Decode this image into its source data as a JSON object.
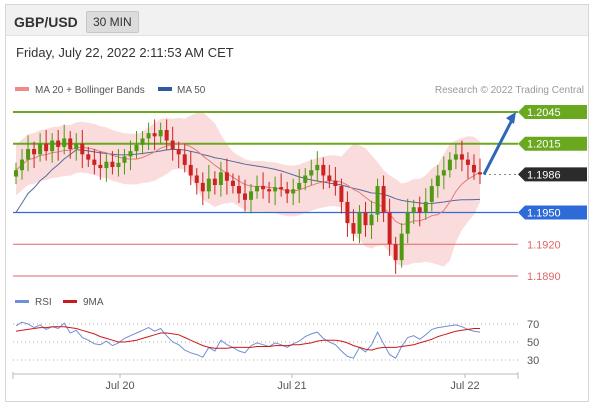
{
  "header": {
    "symbol": "GBP/USD",
    "timeframe": "30 MIN"
  },
  "timestamp": "Friday, July 22, 2022 2:11:53 AM CET",
  "legend": {
    "bollinger": "MA 20 + Bollinger Bands",
    "ma50": "MA 50",
    "rsi": "RSI",
    "rsi_ma": "9MA"
  },
  "copyright": "Research © 2022 Trading Central",
  "colors": {
    "resistance": "#6aa820",
    "support": "#2e6bd8",
    "secondary": "#e06666",
    "candle_up": "#4e9a12",
    "candle_down": "#cc2222",
    "bands": "#f8d0d0",
    "ma50": "#55699a",
    "ma20": "#e07b7b",
    "rsi": "#6f8fd6",
    "rsi_ma": "#cc1a1a",
    "arrow": "#2f66b8"
  },
  "chart_data": {
    "type": "candlestick",
    "instrument": "GBP/USD",
    "x_ticks": [
      "Jul 20",
      "Jul 21",
      "Jul 22"
    ],
    "price_axis_labels": [
      "1.2045",
      "1.2015",
      "1.1986",
      "1.1950",
      "1.1920",
      "1.1890"
    ],
    "levels": [
      {
        "value": 1.2045,
        "label": "1.2045",
        "kind": "resistance"
      },
      {
        "value": 1.2015,
        "label": "1.2015",
        "kind": "resistance"
      },
      {
        "value": 1.1986,
        "label": "1.1986",
        "kind": "last-price"
      },
      {
        "value": 1.195,
        "label": "1.1950",
        "kind": "support"
      },
      {
        "value": 1.192,
        "label": "1.1920",
        "kind": "support"
      },
      {
        "value": 1.189,
        "label": "1.1890",
        "kind": "support"
      }
    ],
    "last_price": 1.1986,
    "target_arrow": {
      "from": 1.1986,
      "to": 1.2045
    },
    "close_series": [
      1.199,
      1.2,
      1.201,
      1.2005,
      1.2015,
      1.2008,
      1.2018,
      1.2012,
      1.202,
      1.201,
      1.2015,
      1.2005,
      1.2,
      1.1995,
      1.1992,
      1.1998,
      1.1993,
      1.1997,
      1.2003,
      1.2008,
      1.2014,
      1.202,
      1.2025,
      1.2022,
      1.2028,
      1.2018,
      1.201,
      1.2005,
      1.1995,
      1.1985,
      1.1978,
      1.197,
      1.1982,
      1.1976,
      1.1988,
      1.198,
      1.1975,
      1.1968,
      1.1962,
      1.197,
      1.1975,
      1.1972,
      1.197,
      1.1974,
      1.1972,
      1.1968,
      1.1972,
      1.1978,
      1.1985,
      1.199,
      1.1995,
      1.1985,
      1.198,
      1.1975,
      1.196,
      1.194,
      1.193,
      1.195,
      1.1938,
      1.1948,
      1.1975,
      1.195,
      1.192,
      1.1905,
      1.193,
      1.195,
      1.1955,
      1.195,
      1.196,
      1.1975,
      1.1985,
      1.199,
      1.2,
      1.2005,
      1.2,
      1.1995,
      1.1988,
      1.1986
    ],
    "rsi": {
      "levels": [
        70,
        50,
        30
      ],
      "values": [
        68,
        72,
        70,
        66,
        69,
        64,
        67,
        65,
        71,
        60,
        63,
        55,
        52,
        48,
        47,
        51,
        46,
        49,
        54,
        57,
        60,
        63,
        66,
        62,
        65,
        57,
        50,
        47,
        41,
        38,
        36,
        33,
        44,
        40,
        52,
        47,
        44,
        40,
        38,
        46,
        49,
        47,
        45,
        49,
        47,
        44,
        48,
        51,
        56,
        59,
        61,
        54,
        50,
        47,
        40,
        34,
        32,
        44,
        39,
        47,
        61,
        48,
        36,
        32,
        45,
        55,
        57,
        53,
        58,
        64,
        66,
        67,
        68,
        69,
        67,
        64,
        62,
        61
      ],
      "ma_values": [
        62,
        63,
        64,
        65,
        66,
        66,
        67,
        67,
        67,
        66,
        65,
        63,
        61,
        59,
        56,
        54,
        52,
        50,
        50,
        51,
        52,
        54,
        56,
        58,
        60,
        60,
        59,
        58,
        55,
        52,
        49,
        46,
        44,
        43,
        43,
        43,
        44,
        44,
        44,
        44,
        45,
        45,
        45,
        46,
        46,
        46,
        47,
        47,
        48,
        49,
        51,
        52,
        52,
        52,
        51,
        49,
        46,
        44,
        42,
        41,
        43,
        44,
        44,
        44,
        45,
        46,
        47,
        49,
        51,
        53,
        56,
        58,
        60,
        62,
        63,
        64,
        65,
        65
      ]
    }
  }
}
